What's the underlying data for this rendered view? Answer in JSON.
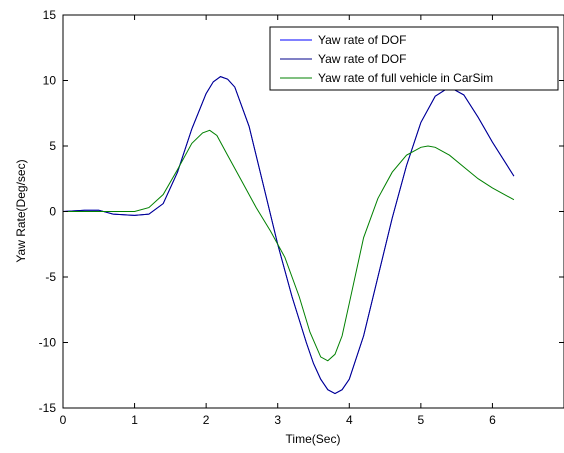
{
  "chart_data": {
    "type": "line",
    "title": "",
    "xlabel": "Time(Sec)",
    "ylabel": "Yaw Rate(Deg/sec)",
    "xlim": [
      0,
      7
    ],
    "ylim": [
      -15,
      15
    ],
    "xticks": [
      0,
      1,
      2,
      3,
      4,
      5,
      6,
      7
    ],
    "yticks": [
      -15,
      -10,
      -5,
      0,
      5,
      10,
      15
    ],
    "xtick_labels": [
      "0",
      "1",
      "2",
      "3",
      "4",
      "5",
      "6",
      ""
    ],
    "ytick_labels": [
      "-15",
      "-10",
      "-5",
      "0",
      "5",
      "10",
      "15"
    ],
    "grid": false,
    "legend_position": "top-right",
    "series": [
      {
        "name": "Yaw rate of DOF",
        "color": "#0000ff",
        "x": [
          0,
          0.3,
          0.5,
          0.7,
          1.0,
          1.2,
          1.4,
          1.6,
          1.8,
          2.0,
          2.1,
          2.2,
          2.3,
          2.4,
          2.6,
          2.8,
          3.0,
          3.2,
          3.4,
          3.5,
          3.6,
          3.7,
          3.8,
          3.9,
          4.0,
          4.2,
          4.4,
          4.6,
          4.8,
          5.0,
          5.2,
          5.4,
          5.6,
          5.8,
          6.0,
          6.3
        ],
        "y": [
          0,
          0.1,
          0.1,
          -0.2,
          -0.3,
          -0.2,
          0.6,
          3.0,
          6.3,
          9.0,
          9.9,
          10.3,
          10.1,
          9.5,
          6.5,
          2.0,
          -2.5,
          -6.5,
          -10.0,
          -11.6,
          -12.8,
          -13.6,
          -13.9,
          -13.6,
          -12.8,
          -9.5,
          -5.0,
          -0.5,
          3.5,
          6.8,
          8.8,
          9.5,
          8.9,
          7.2,
          5.3,
          2.7
        ]
      },
      {
        "name": "Yaw rate of DOF",
        "color": "#00008b",
        "x": [
          0,
          0.3,
          0.5,
          0.7,
          1.0,
          1.2,
          1.4,
          1.6,
          1.8,
          2.0,
          2.1,
          2.2,
          2.3,
          2.4,
          2.6,
          2.8,
          3.0,
          3.2,
          3.4,
          3.5,
          3.6,
          3.7,
          3.8,
          3.9,
          4.0,
          4.2,
          4.4,
          4.6,
          4.8,
          5.0,
          5.2,
          5.4,
          5.6,
          5.8,
          6.0,
          6.3
        ],
        "y": [
          0,
          0.1,
          0.1,
          -0.2,
          -0.3,
          -0.2,
          0.6,
          3.0,
          6.3,
          9.0,
          9.9,
          10.3,
          10.1,
          9.5,
          6.5,
          2.0,
          -2.5,
          -6.5,
          -10.0,
          -11.6,
          -12.8,
          -13.6,
          -13.9,
          -13.6,
          -12.8,
          -9.5,
          -5.0,
          -0.5,
          3.5,
          6.8,
          8.8,
          9.5,
          8.9,
          7.2,
          5.3,
          2.7
        ]
      },
      {
        "name": "Yaw rate of full vehicle in CarSim",
        "color": "#008000",
        "x": [
          0,
          0.5,
          1.0,
          1.2,
          1.4,
          1.6,
          1.8,
          1.95,
          2.05,
          2.15,
          2.3,
          2.5,
          2.7,
          2.9,
          3.1,
          3.3,
          3.45,
          3.6,
          3.7,
          3.8,
          3.9,
          4.0,
          4.2,
          4.4,
          4.6,
          4.8,
          5.0,
          5.1,
          5.2,
          5.4,
          5.6,
          5.8,
          6.0,
          6.3
        ],
        "y": [
          0,
          0,
          0,
          0.3,
          1.3,
          3.2,
          5.2,
          6.0,
          6.2,
          5.8,
          4.3,
          2.3,
          0.3,
          -1.5,
          -3.5,
          -6.5,
          -9.2,
          -11.1,
          -11.4,
          -10.9,
          -9.5,
          -7.0,
          -2.0,
          1.0,
          3.0,
          4.3,
          4.9,
          5.0,
          4.9,
          4.3,
          3.4,
          2.5,
          1.8,
          0.9
        ]
      }
    ]
  }
}
